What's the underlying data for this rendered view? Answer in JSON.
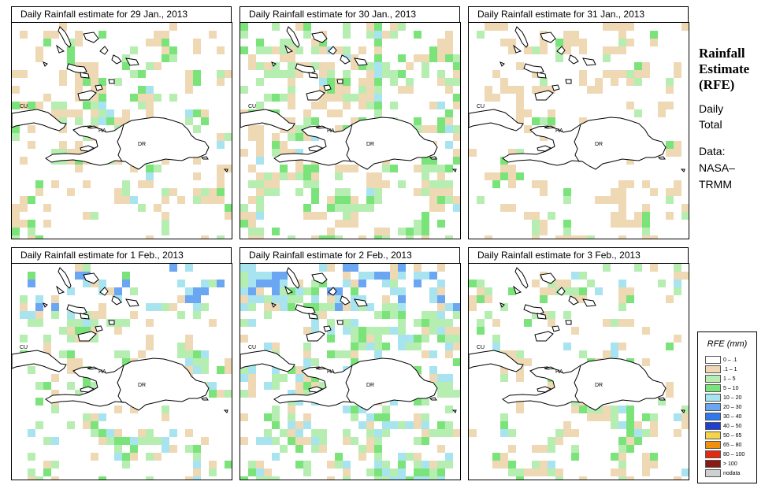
{
  "panels": [
    {
      "title": "Daily Rainfall estimate for  29 Jan., 2013",
      "seed": 11,
      "density": 0.16,
      "wet": 0.35,
      "blue": 0.03
    },
    {
      "title": "Daily Rainfall estimate for  30 Jan., 2013",
      "seed": 23,
      "density": 0.24,
      "wet": 0.55,
      "blue": 0.04
    },
    {
      "title": "Daily Rainfall estimate for  31 Jan., 2013",
      "seed": 37,
      "density": 0.13,
      "wet": 0.25,
      "blue": 0.0
    },
    {
      "title": "Daily Rainfall estimate for  1 Feb., 2013",
      "seed": 41,
      "density": 0.18,
      "wet": 0.5,
      "blue": 0.12
    },
    {
      "title": "Daily Rainfall estimate for  2 Feb., 2013",
      "seed": 53,
      "density": 0.28,
      "wet": 0.62,
      "blue": 0.18
    },
    {
      "title": "Daily Rainfall estimate for  3 Feb., 2013",
      "seed": 67,
      "density": 0.14,
      "wet": 0.45,
      "blue": 0.1
    }
  ],
  "country_labels": [
    "CU",
    "HA",
    "DR"
  ],
  "side": {
    "title_lines": [
      "Rainfall",
      "Estimate",
      "(RFE)"
    ],
    "lines": [
      "Daily",
      "Total",
      "",
      "Data:",
      "NASA–",
      "TRMM"
    ]
  },
  "legend": {
    "title": "RFE (mm)",
    "items": [
      {
        "label": "0 – .1",
        "color": "#ffffff"
      },
      {
        "label": ".1 – 1",
        "color": "#efd8b4"
      },
      {
        "label": "1 – 5",
        "color": "#b6eeb2"
      },
      {
        "label": "5 – 10",
        "color": "#7ae47a"
      },
      {
        "label": "10 – 20",
        "color": "#a8e4f0"
      },
      {
        "label": "20 – 30",
        "color": "#6aa6f2"
      },
      {
        "label": "30 – 40",
        "color": "#2f79ec"
      },
      {
        "label": "40 – 50",
        "color": "#1d3fd2"
      },
      {
        "label": "50 – 65",
        "color": "#f5d44a"
      },
      {
        "label": "65 – 80",
        "color": "#f0900c"
      },
      {
        "label": "80 – 100",
        "color": "#e12a10"
      },
      {
        "label": "> 100",
        "color": "#8b1a14"
      },
      {
        "label": "nodata",
        "color": "#cfcfcf"
      }
    ]
  }
}
